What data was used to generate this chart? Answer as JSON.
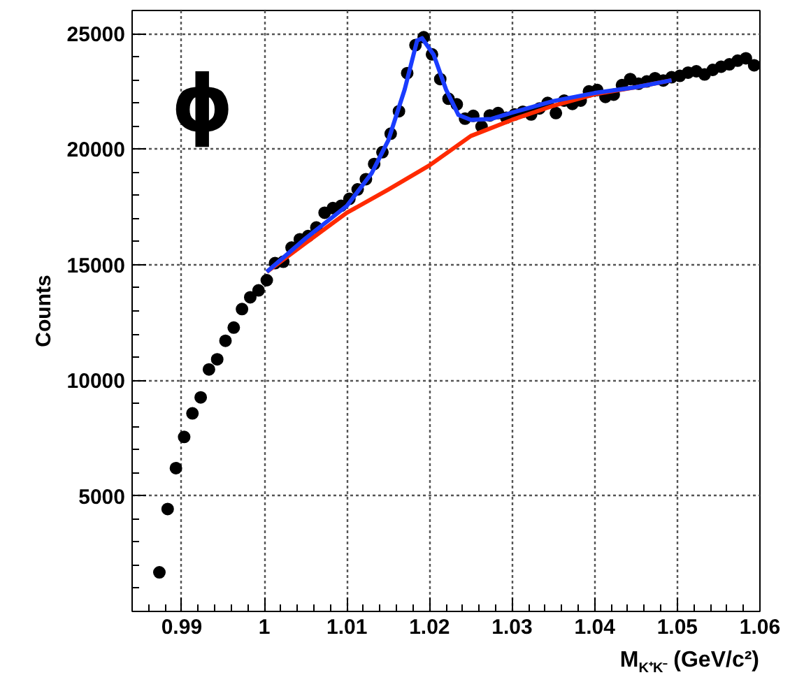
{
  "chart_data": {
    "type": "scatter",
    "xlabel": "M$_{K⁺K⁻}$ (GeV/c²)",
    "ylabel": "Counts",
    "annotations": [
      "ϕ"
    ],
    "xlim": [
      0.984,
      1.06
    ],
    "ylim": [
      0,
      26000
    ],
    "xticks": [
      0.99,
      {
        "value": 1.0,
        "label": "1"
      },
      1.01,
      1.02,
      1.03,
      1.04,
      1.05,
      1.06
    ],
    "yticks": [
      5000,
      10000,
      15000,
      20000,
      25000
    ],
    "grid": true,
    "series": [
      {
        "marker": "circle",
        "color": "#000000",
        "x": [
          0.9873,
          0.9883,
          0.9893,
          0.9903,
          0.9913,
          0.9923,
          0.9933,
          0.9943,
          0.9953,
          0.9963,
          0.9973,
          0.9983,
          0.9993,
          1.0003,
          1.0013,
          1.0023,
          1.0033,
          1.0043,
          1.0053,
          1.0063,
          1.0073,
          1.0083,
          1.0093,
          1.0103,
          1.0113,
          1.0123,
          1.0133,
          1.0143,
          1.0153,
          1.0163,
          1.0173,
          1.0183,
          1.0193,
          1.0203,
          1.0213,
          1.0223,
          1.0233,
          1.0243,
          1.0253,
          1.0263,
          1.0273,
          1.0283,
          1.0293,
          1.0303,
          1.0313,
          1.0323,
          1.0333,
          1.0343,
          1.0353,
          1.0363,
          1.0373,
          1.0383,
          1.0393,
          1.0403,
          1.0413,
          1.0423,
          1.0433,
          1.0443,
          1.0453,
          1.0463,
          1.0473,
          1.0483,
          1.0493,
          1.0503,
          1.0513,
          1.0523,
          1.0533,
          1.0543,
          1.0553,
          1.0563,
          1.0573,
          1.0583,
          1.0593
        ],
        "values": [
          1690,
          4430,
          6200,
          7550,
          8570,
          9260,
          10470,
          10910,
          11710,
          12280,
          13080,
          13590,
          13890,
          14330,
          15070,
          15130,
          15740,
          16100,
          16240,
          16610,
          17250,
          17450,
          17550,
          17850,
          18260,
          18700,
          19360,
          19870,
          20670,
          21640,
          23290,
          24500,
          24840,
          24100,
          23030,
          22180,
          21940,
          21320,
          21440,
          20980,
          21460,
          21560,
          21360,
          21500,
          21620,
          21500,
          21760,
          22000,
          21560,
          22100,
          21960,
          22100,
          22500,
          22560,
          22260,
          22360,
          22770,
          23030,
          22830,
          22930,
          23070,
          22970,
          23110,
          23170,
          23310,
          23370,
          23230,
          23430,
          23570,
          23670,
          23830,
          23930,
          23630
        ]
      },
      {
        "type": "line",
        "color": "#ff2a00",
        "x": [
          1.0003,
          1.005,
          1.01,
          1.015,
          1.02,
          1.025,
          1.03,
          1.035,
          1.04,
          1.045,
          1.0493
        ],
        "values": [
          14690,
          15940,
          17250,
          18250,
          19300,
          20570,
          21270,
          21880,
          22380,
          22680,
          22980
        ]
      },
      {
        "type": "line",
        "color": "#1a3cff",
        "x": [
          1.0003,
          1.005,
          1.01,
          1.013,
          1.015,
          1.017,
          1.0185,
          1.0191,
          1.0205,
          1.022,
          1.0235,
          1.025,
          1.0275,
          1.03,
          1.035,
          1.04,
          1.045,
          1.0493
        ],
        "values": [
          14690,
          16140,
          17550,
          18960,
          20370,
          22590,
          24700,
          24800,
          24090,
          22580,
          21480,
          21270,
          21310,
          21580,
          22080,
          22430,
          22680,
          22980
        ]
      }
    ]
  }
}
